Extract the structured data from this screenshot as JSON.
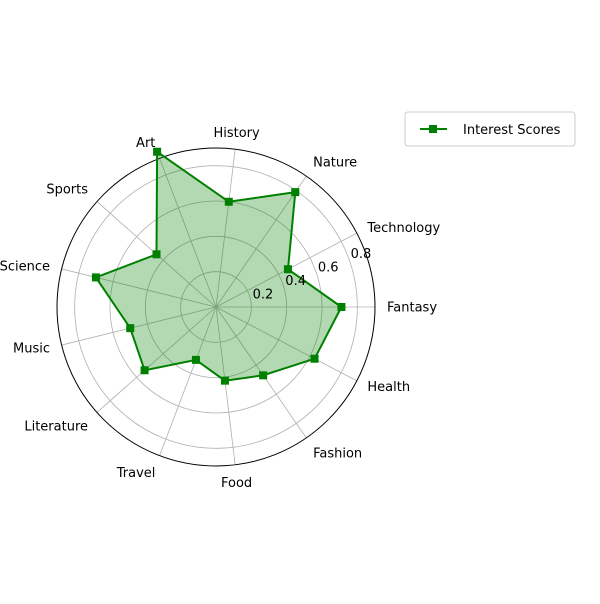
{
  "chart_data": {
    "type": "radar",
    "title": "",
    "categories": [
      "Fantasy",
      "Technology",
      "Nature",
      "History",
      "Art",
      "Sports",
      "Science",
      "Music",
      "Literature",
      "Travel",
      "Food",
      "Fashion",
      "Health"
    ],
    "series": [
      {
        "name": "Interest Scores",
        "values": [
          0.71,
          0.46,
          0.79,
          0.6,
          0.94,
          0.45,
          0.7,
          0.5,
          0.54,
          0.32,
          0.42,
          0.47,
          0.63
        ],
        "color": "#008000",
        "fill_color": "#008000",
        "marker": "square"
      }
    ],
    "radial_ticks": [
      0.2,
      0.4,
      0.6,
      0.8
    ],
    "radial_tick_labels": [
      "0.2",
      "0.4",
      "0.6",
      "0.8"
    ],
    "rlim": [
      0,
      0.9
    ],
    "grid": true,
    "legend_position": "top-right, outside plot"
  }
}
